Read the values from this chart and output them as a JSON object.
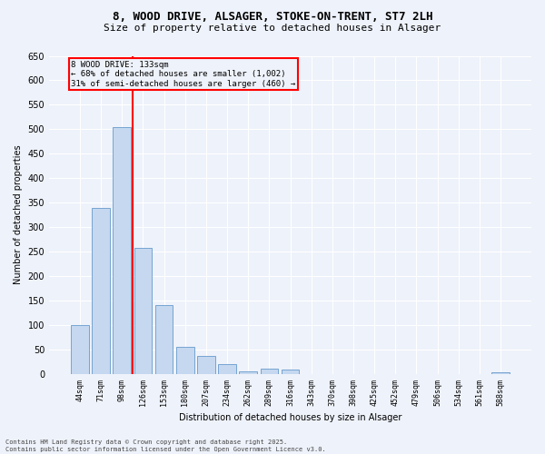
{
  "title_line1": "8, WOOD DRIVE, ALSAGER, STOKE-ON-TRENT, ST7 2LH",
  "title_line2": "Size of property relative to detached houses in Alsager",
  "xlabel": "Distribution of detached houses by size in Alsager",
  "ylabel": "Number of detached properties",
  "categories": [
    "44sqm",
    "71sqm",
    "98sqm",
    "126sqm",
    "153sqm",
    "180sqm",
    "207sqm",
    "234sqm",
    "262sqm",
    "289sqm",
    "316sqm",
    "343sqm",
    "370sqm",
    "398sqm",
    "425sqm",
    "452sqm",
    "479sqm",
    "506sqm",
    "534sqm",
    "561sqm",
    "588sqm"
  ],
  "values": [
    100,
    340,
    505,
    258,
    140,
    55,
    37,
    20,
    6,
    10,
    9,
    0,
    0,
    0,
    0,
    0,
    0,
    0,
    0,
    0,
    3
  ],
  "bar_color": "#c5d8f0",
  "bar_edge_color": "#6699cc",
  "annotation_text_line1": "8 WOOD DRIVE: 133sqm",
  "annotation_text_line2": "← 68% of detached houses are smaller (1,002)",
  "annotation_text_line3": "31% of semi-detached houses are larger (460) →",
  "annotation_box_color": "red",
  "vline_color": "red",
  "vline_x": 2.5,
  "ylim": [
    0,
    650
  ],
  "yticks": [
    0,
    50,
    100,
    150,
    200,
    250,
    300,
    350,
    400,
    450,
    500,
    550,
    600,
    650
  ],
  "footnote_line1": "Contains HM Land Registry data © Crown copyright and database right 2025.",
  "footnote_line2": "Contains public sector information licensed under the Open Government Licence v3.0.",
  "bg_color": "#eef2fa",
  "grid_color": "#ffffff",
  "title_fontsize": 9,
  "subtitle_fontsize": 8,
  "tick_fontsize": 6,
  "ylabel_fontsize": 7,
  "xlabel_fontsize": 7,
  "annotation_fontsize": 6.5,
  "footnote_fontsize": 5
}
